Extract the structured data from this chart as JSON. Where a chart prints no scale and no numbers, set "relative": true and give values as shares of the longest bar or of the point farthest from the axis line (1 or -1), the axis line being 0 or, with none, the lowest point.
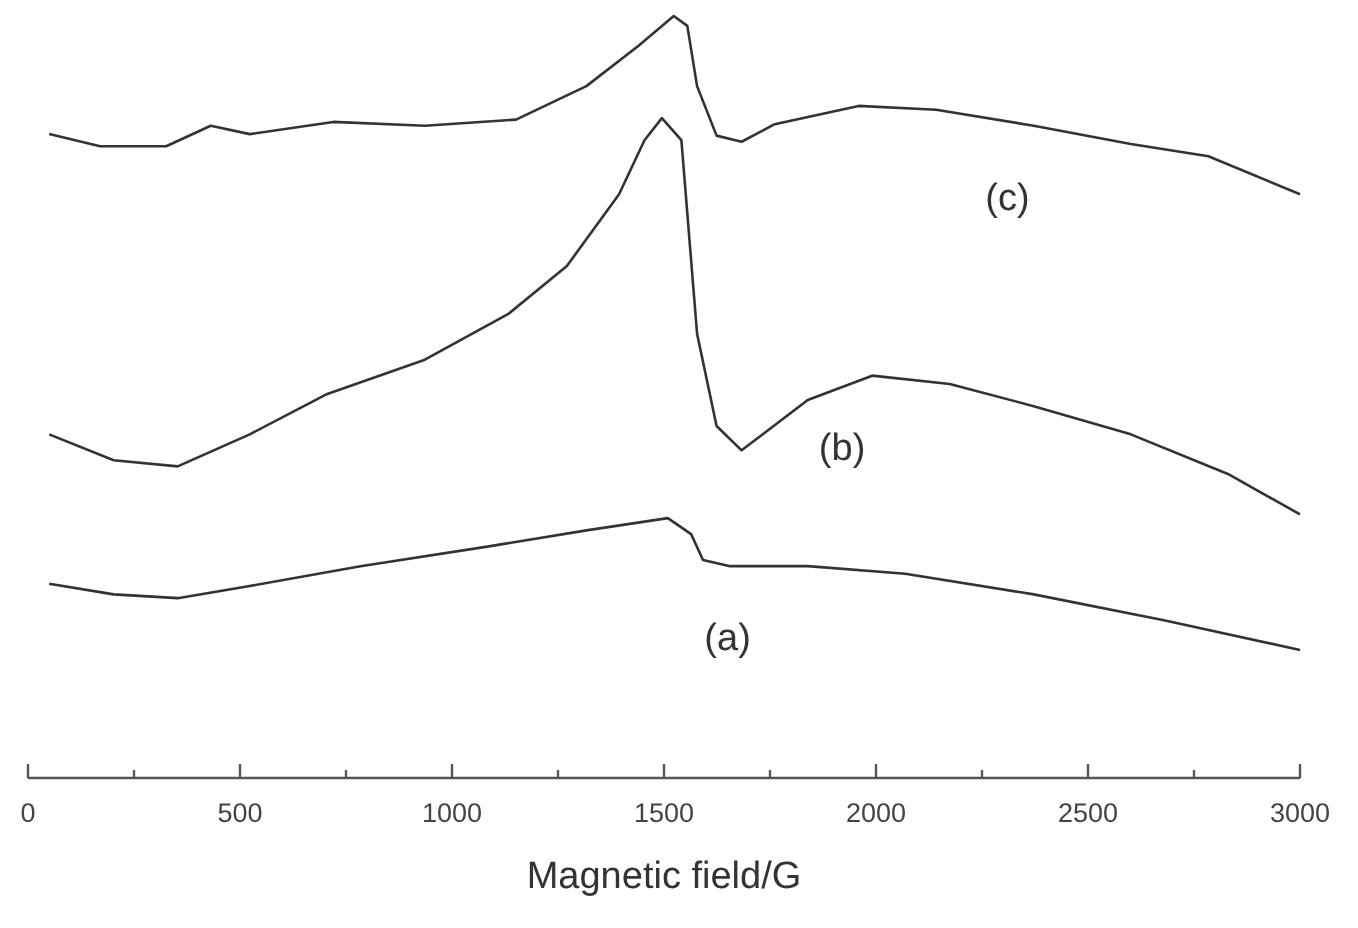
{
  "chart_data": {
    "type": "line",
    "relative": true,
    "xlabel": "Magnetic field/G",
    "xlim": [
      0,
      3000
    ],
    "xticks": [
      0,
      {
        "value": 250,
        "label": null
      },
      500,
      {
        "value": 750,
        "label": null
      },
      1000,
      {
        "value": 1250,
        "label": null
      },
      1500,
      {
        "value": 1750,
        "label": null
      },
      2000,
      {
        "value": 2250,
        "label": null
      },
      2500,
      {
        "value": 2750,
        "label": null
      },
      3000
    ],
    "marker": "none",
    "line_style": "solid",
    "legend": false,
    "grid": false,
    "tick_labels": "x",
    "series": [
      {
        "name": "(a)",
        "color": "#333333",
        "x": [
          50,
          202,
          353,
          523,
          784,
          1087,
          1317,
          1509,
          1564,
          1592,
          1656,
          1839,
          2069,
          2372,
          2679,
          3000
        ],
        "values": [
          0.255,
          0.241,
          0.236,
          0.252,
          0.278,
          0.304,
          0.325,
          0.341,
          0.32,
          0.286,
          0.278,
          0.278,
          0.268,
          0.241,
          0.207,
          0.168
        ]
      },
      {
        "name": "(b)",
        "color": "#333333",
        "x": [
          50,
          202,
          353,
          523,
          706,
          936,
          1133,
          1271,
          1394,
          1454,
          1495,
          1541,
          1578,
          1624,
          1683,
          1839,
          1991,
          2174,
          2372,
          2601,
          2830,
          3000
        ],
        "values": [
          0.451,
          0.417,
          0.409,
          0.451,
          0.504,
          0.549,
          0.609,
          0.672,
          0.766,
          0.837,
          0.866,
          0.837,
          0.583,
          0.462,
          0.43,
          0.496,
          0.528,
          0.517,
          0.488,
          0.451,
          0.399,
          0.346
        ]
      },
      {
        "name": "(c)",
        "color": "#333333",
        "x": [
          50,
          170,
          326,
          431,
          523,
          720,
          936,
          1151,
          1317,
          1440,
          1523,
          1555,
          1578,
          1624,
          1683,
          1761,
          1959,
          2142,
          2372,
          2601,
          2784,
          3000
        ],
        "values": [
          0.845,
          0.829,
          0.829,
          0.856,
          0.845,
          0.861,
          0.856,
          0.864,
          0.908,
          0.961,
          1,
          0.987,
          0.908,
          0.843,
          0.835,
          0.858,
          0.882,
          0.877,
          0.856,
          0.832,
          0.816,
          0.766
        ]
      }
    ]
  }
}
